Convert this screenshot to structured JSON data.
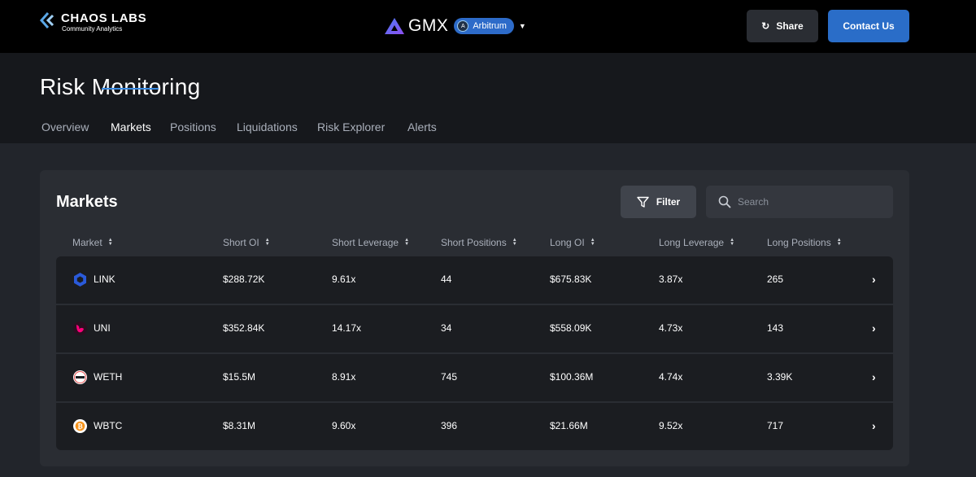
{
  "brand": {
    "name": "CHAOS LABS",
    "subtitle": "Community Analytics"
  },
  "protocol": {
    "name": "GMX",
    "network": "Arbitrum"
  },
  "actions": {
    "share_label": "Share",
    "contact_label": "Contact Us"
  },
  "page": {
    "title": "Risk Monitoring"
  },
  "tabs": [
    {
      "label": "Overview",
      "active": false
    },
    {
      "label": "Markets",
      "active": true
    },
    {
      "label": "Positions",
      "active": false
    },
    {
      "label": "Liquidations",
      "active": false
    },
    {
      "label": "Risk Explorer",
      "active": false
    },
    {
      "label": "Alerts",
      "active": false
    }
  ],
  "markets": {
    "title": "Markets",
    "filter_label": "Filter",
    "search_placeholder": "Search",
    "columns": [
      "Market",
      "Short OI",
      "Short Leverage",
      "Short Positions",
      "Long OI",
      "Long Leverage",
      "Long Positions"
    ],
    "rows": [
      {
        "market": "LINK",
        "short_oi": "$288.72K",
        "short_leverage": "9.61x",
        "short_positions": "44",
        "long_oi": "$675.83K",
        "long_leverage": "3.87x",
        "long_positions": "265"
      },
      {
        "market": "UNI",
        "short_oi": "$352.84K",
        "short_leverage": "14.17x",
        "short_positions": "34",
        "long_oi": "$558.09K",
        "long_leverage": "4.73x",
        "long_positions": "143"
      },
      {
        "market": "WETH",
        "short_oi": "$15.5M",
        "short_leverage": "8.91x",
        "short_positions": "745",
        "long_oi": "$100.36M",
        "long_leverage": "4.74x",
        "long_positions": "3.39K"
      },
      {
        "market": "WBTC",
        "short_oi": "$8.31M",
        "short_leverage": "9.60x",
        "short_positions": "396",
        "long_oi": "$21.66M",
        "long_leverage": "9.52x",
        "long_positions": "717"
      }
    ]
  },
  "colors": {
    "accent": "#2a6dc8",
    "tab_underline": "#3b8ae0",
    "link": "#2a5ada",
    "uni": "#ff007a",
    "btc": "#f7931a"
  },
  "icons": [
    "chaos-labs-logo",
    "gmx-logo",
    "arbitrum-icon",
    "chevron-down-icon",
    "share-icon",
    "filter-icon",
    "search-icon",
    "sort-icon",
    "link-token-icon",
    "uni-token-icon",
    "weth-token-icon",
    "wbtc-token-icon",
    "chevron-right-icon"
  ]
}
